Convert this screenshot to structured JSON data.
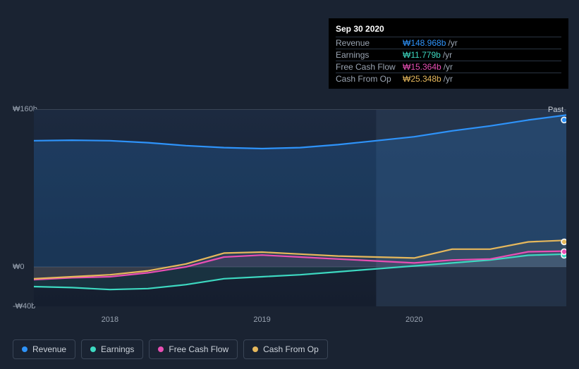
{
  "tooltip": {
    "date": "Sep 30 2020",
    "unit": "/yr",
    "rows": [
      {
        "label": "Revenue",
        "value": "₩148.968b",
        "color": "#2e93fa"
      },
      {
        "label": "Earnings",
        "value": "₩11.779b",
        "color": "#3dd9c1"
      },
      {
        "label": "Free Cash Flow",
        "value": "₩15.364b",
        "color": "#e84fb4"
      },
      {
        "label": "Cash From Op",
        "value": "₩25.348b",
        "color": "#e6b85c"
      }
    ]
  },
  "chart": {
    "type": "area",
    "background_from": "#1c2a40",
    "background_to": "#151e2e",
    "grid_color": "#3a4556",
    "axis_text_color": "#9aa4b2",
    "ylim": [
      -40,
      160
    ],
    "yticks": [
      {
        "value": 160,
        "label": "₩160b"
      },
      {
        "value": 0,
        "label": "₩0"
      },
      {
        "value": -40,
        "label": "-₩40b"
      }
    ],
    "xlim": [
      2017.5,
      2021.0
    ],
    "xticks": [
      {
        "value": 2018,
        "label": "2018"
      },
      {
        "value": 2019,
        "label": "2019"
      },
      {
        "value": 2020,
        "label": "2020"
      }
    ],
    "highlight_from": 2019.75,
    "highlight_color": "#2a3a52",
    "past_label": "Past",
    "marker_x": 2020.75,
    "series": [
      {
        "name": "Revenue",
        "color": "#2e93fa",
        "fill": "rgba(46,147,250,0.18)",
        "points": [
          [
            2017.5,
            128
          ],
          [
            2017.75,
            128.5
          ],
          [
            2018,
            128
          ],
          [
            2018.25,
            126
          ],
          [
            2018.5,
            123
          ],
          [
            2018.75,
            121
          ],
          [
            2019,
            120
          ],
          [
            2019.25,
            121
          ],
          [
            2019.5,
            124
          ],
          [
            2019.75,
            128
          ],
          [
            2020,
            132
          ],
          [
            2020.25,
            138
          ],
          [
            2020.5,
            143
          ],
          [
            2020.75,
            148.968
          ],
          [
            2021,
            154
          ]
        ]
      },
      {
        "name": "Earnings",
        "color": "#3dd9c1",
        "fill": "rgba(61,217,193,0.10)",
        "points": [
          [
            2017.5,
            -20
          ],
          [
            2017.75,
            -21
          ],
          [
            2018,
            -23
          ],
          [
            2018.25,
            -22
          ],
          [
            2018.5,
            -18
          ],
          [
            2018.75,
            -12
          ],
          [
            2019,
            -10
          ],
          [
            2019.25,
            -8
          ],
          [
            2019.5,
            -5
          ],
          [
            2019.75,
            -2
          ],
          [
            2020,
            1
          ],
          [
            2020.25,
            4
          ],
          [
            2020.5,
            7
          ],
          [
            2020.75,
            11.779
          ],
          [
            2021,
            13
          ]
        ]
      },
      {
        "name": "Free Cash Flow",
        "color": "#e84fb4",
        "fill": "rgba(232,79,180,0.08)",
        "points": [
          [
            2017.5,
            -13
          ],
          [
            2017.75,
            -11
          ],
          [
            2018,
            -10
          ],
          [
            2018.25,
            -6
          ],
          [
            2018.5,
            0
          ],
          [
            2018.75,
            10
          ],
          [
            2019,
            12
          ],
          [
            2019.25,
            10
          ],
          [
            2019.5,
            8
          ],
          [
            2019.75,
            6
          ],
          [
            2020,
            4
          ],
          [
            2020.25,
            7
          ],
          [
            2020.5,
            8
          ],
          [
            2020.75,
            15.364
          ],
          [
            2021,
            16
          ]
        ]
      },
      {
        "name": "Cash From Op",
        "color": "#e6b85c",
        "fill": "rgba(230,184,92,0.08)",
        "points": [
          [
            2017.5,
            -12
          ],
          [
            2017.75,
            -10
          ],
          [
            2018,
            -8
          ],
          [
            2018.25,
            -4
          ],
          [
            2018.5,
            3
          ],
          [
            2018.75,
            14
          ],
          [
            2019,
            15
          ],
          [
            2019.25,
            13
          ],
          [
            2019.5,
            11
          ],
          [
            2019.75,
            10
          ],
          [
            2020,
            9
          ],
          [
            2020.25,
            18
          ],
          [
            2020.5,
            18
          ],
          [
            2020.75,
            25.348
          ],
          [
            2021,
            27
          ]
        ]
      }
    ]
  },
  "legend": [
    {
      "label": "Revenue",
      "color": "#2e93fa"
    },
    {
      "label": "Earnings",
      "color": "#3dd9c1"
    },
    {
      "label": "Free Cash Flow",
      "color": "#e84fb4"
    },
    {
      "label": "Cash From Op",
      "color": "#e6b85c"
    }
  ]
}
